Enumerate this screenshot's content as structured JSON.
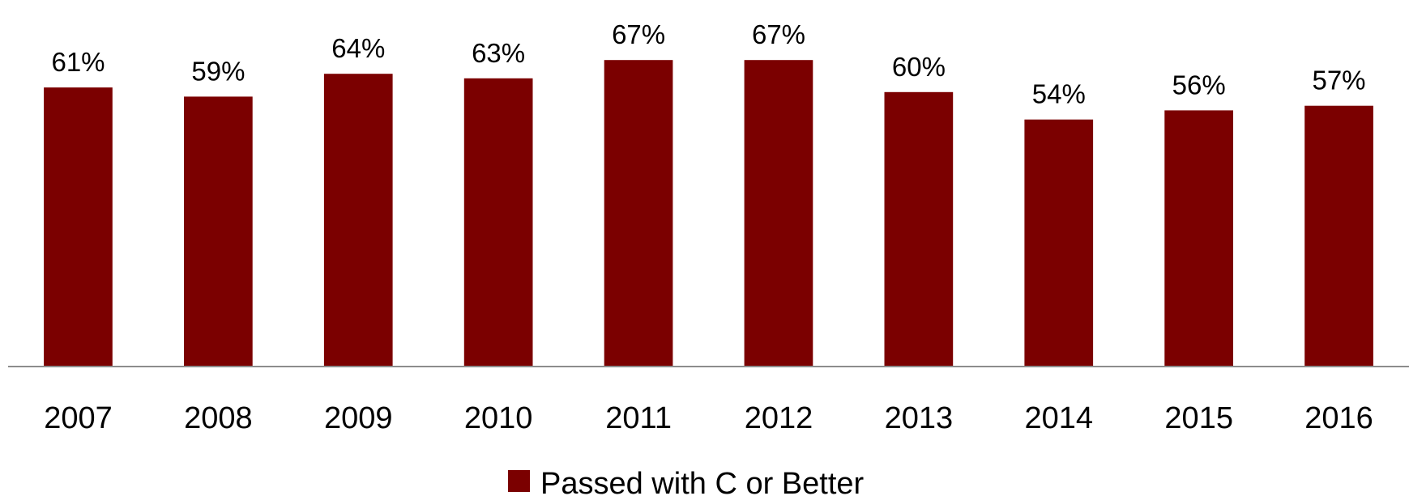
{
  "chart_data": {
    "type": "bar",
    "categories": [
      "2007",
      "2008",
      "2009",
      "2010",
      "2011",
      "2012",
      "2013",
      "2014",
      "2015",
      "2016"
    ],
    "series": [
      {
        "name": "Passed with C or Better",
        "values": [
          61,
          59,
          64,
          63,
          67,
          67,
          60,
          54,
          56,
          57
        ],
        "color": "#7b0000"
      }
    ],
    "data_labels": [
      "61%",
      "59%",
      "64%",
      "63%",
      "67%",
      "67%",
      "60%",
      "54%",
      "56%",
      "57%"
    ],
    "ylim": [
      0,
      78
    ],
    "grid": false,
    "legend": {
      "position": "bottom",
      "entries": [
        "Passed with C or Better"
      ]
    },
    "title": "",
    "xlabel": "",
    "ylabel": ""
  }
}
